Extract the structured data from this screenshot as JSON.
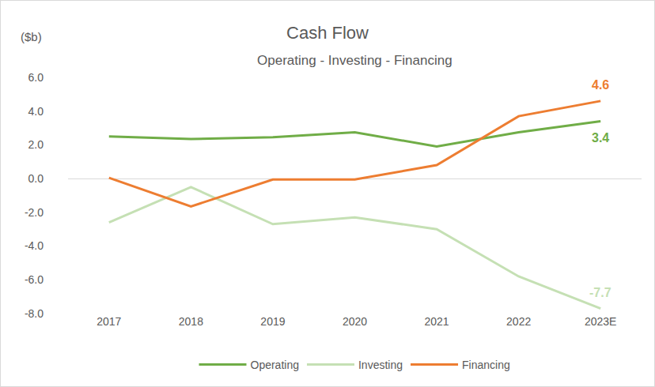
{
  "chart_data": {
    "type": "line",
    "title": "Cash Flow",
    "subtitle": "Operating - Investing - Financing",
    "y_label": "($b)",
    "categories": [
      "2017",
      "2018",
      "2019",
      "2020",
      "2021",
      "2022",
      "2023E"
    ],
    "series": [
      {
        "name": "Operating",
        "color": "#70ad47",
        "values": [
          2.5,
          2.35,
          2.45,
          2.75,
          1.9,
          2.75,
          3.4
        ]
      },
      {
        "name": "Investing",
        "color": "#c5e0b4",
        "values": [
          -2.6,
          -0.5,
          -2.7,
          -2.3,
          -3.0,
          -5.8,
          -7.7
        ]
      },
      {
        "name": "Financing",
        "color": "#ed7d31",
        "values": [
          0.05,
          -1.65,
          -0.05,
          -0.05,
          0.8,
          3.7,
          4.6
        ]
      }
    ],
    "ylim": [
      -8,
      6
    ],
    "yticks": [
      {
        "value": -8,
        "label": "-8.0"
      },
      {
        "value": -6,
        "label": "-6.0"
      },
      {
        "value": -4,
        "label": "-4.0"
      },
      {
        "value": -2,
        "label": "-2.0"
      },
      {
        "value": 0,
        "label": "0.0"
      },
      {
        "value": 2,
        "label": "2.0"
      },
      {
        "value": 4,
        "label": "4.0"
      },
      {
        "value": 6,
        "label": "6.0"
      }
    ],
    "grid": false,
    "legend": "bottom",
    "annotations": [
      {
        "series": "Financing",
        "category": "2023E",
        "text": "4.6"
      },
      {
        "series": "Operating",
        "category": "2023E",
        "text": "3.4"
      },
      {
        "series": "Investing",
        "category": "2023E",
        "text": "-7.7"
      }
    ]
  }
}
